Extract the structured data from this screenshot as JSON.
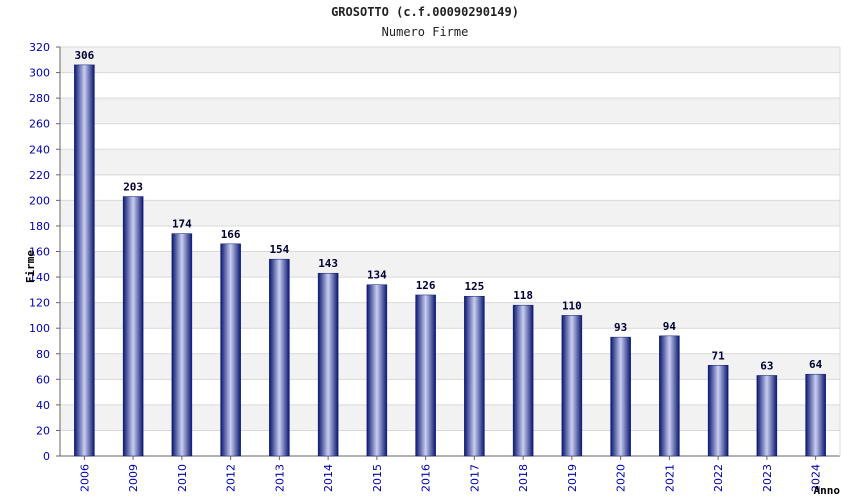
{
  "chart_data": {
    "type": "bar",
    "title": "GROSOTTO (c.f.00090290149)",
    "subtitle": "Numero Firme",
    "xlabel": "Anno",
    "ylabel": "Firme",
    "categories": [
      "2006",
      "2009",
      "2010",
      "2012",
      "2013",
      "2014",
      "2015",
      "2016",
      "2017",
      "2018",
      "2019",
      "2020",
      "2021",
      "2022",
      "2023",
      "2024"
    ],
    "values": [
      306,
      203,
      174,
      166,
      154,
      143,
      134,
      126,
      125,
      118,
      110,
      93,
      94,
      71,
      63,
      64
    ],
    "ylim": [
      0,
      320
    ],
    "yticks": [
      0,
      20,
      40,
      60,
      80,
      100,
      120,
      140,
      160,
      180,
      200,
      220,
      240,
      260,
      280,
      300,
      320
    ],
    "grid": true,
    "colors": {
      "bar_edge": "#0a1670",
      "bar_center": "#c9cef0",
      "tick": "#0000aa",
      "band": "#f2f2f2"
    }
  }
}
